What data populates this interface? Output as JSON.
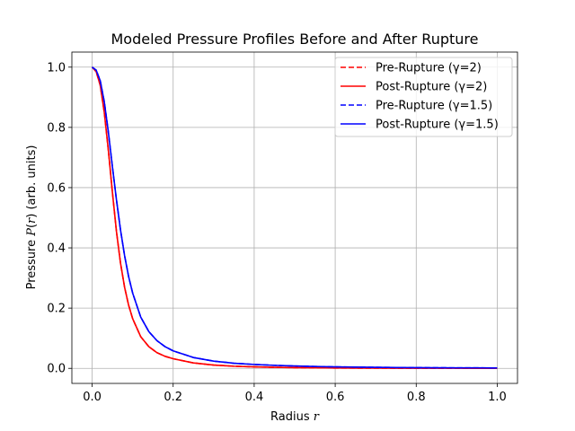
{
  "chart_data": {
    "type": "line",
    "title": "Modeled Pressure Profiles Before and After Rupture",
    "xlabel": "Radius r",
    "ylabel": "Pressure P(r) (arb. units)",
    "xlim": [
      -0.05,
      1.05
    ],
    "ylim": [
      -0.05,
      1.05
    ],
    "xticks": [
      0.0,
      0.2,
      0.4,
      0.6,
      0.8,
      1.0
    ],
    "yticks": [
      0.0,
      0.2,
      0.4,
      0.6,
      0.8,
      1.0
    ],
    "xtick_labels": [
      "0.0",
      "0.2",
      "0.4",
      "0.6",
      "0.8",
      "1.0"
    ],
    "ytick_labels": [
      "0.0",
      "0.2",
      "0.4",
      "0.6",
      "0.8",
      "1.0"
    ],
    "grid": true,
    "legend_position": "top-right",
    "x": [
      0.0,
      0.01,
      0.02,
      0.03,
      0.04,
      0.05,
      0.06,
      0.07,
      0.08,
      0.09,
      0.1,
      0.12,
      0.14,
      0.16,
      0.18,
      0.2,
      0.25,
      0.3,
      0.35,
      0.4,
      0.45,
      0.5,
      0.55,
      0.6,
      0.65,
      0.7,
      0.75,
      0.8,
      0.85,
      0.9,
      0.95,
      1.0
    ],
    "series": [
      {
        "name": "Pre-Rupture (γ=2)",
        "color": "#ff0000",
        "dash": true,
        "values": [
          1.0,
          0.985,
          0.94,
          0.85,
          0.725,
          0.585,
          0.455,
          0.35,
          0.27,
          0.21,
          0.165,
          0.105,
          0.072,
          0.052,
          0.04,
          0.032,
          0.018,
          0.011,
          0.007,
          0.005,
          0.0035,
          0.0025,
          0.0018,
          0.0013,
          0.001,
          0.0008,
          0.0006,
          0.0005,
          0.0004,
          0.0003,
          0.0002,
          0.0002
        ]
      },
      {
        "name": "Post-Rupture (γ=2)",
        "color": "#ff0000",
        "dash": false,
        "values": [
          1.0,
          0.985,
          0.94,
          0.85,
          0.725,
          0.585,
          0.455,
          0.35,
          0.27,
          0.21,
          0.165,
          0.105,
          0.072,
          0.052,
          0.04,
          0.032,
          0.018,
          0.011,
          0.007,
          0.005,
          0.0035,
          0.0025,
          0.0018,
          0.0013,
          0.001,
          0.0008,
          0.0006,
          0.0005,
          0.0004,
          0.0003,
          0.0002,
          0.0002
        ]
      },
      {
        "name": "Pre-Rupture (γ=1.5)",
        "color": "#0000ff",
        "dash": true,
        "values": [
          1.0,
          0.99,
          0.955,
          0.885,
          0.785,
          0.67,
          0.56,
          0.46,
          0.375,
          0.305,
          0.25,
          0.17,
          0.122,
          0.092,
          0.072,
          0.058,
          0.036,
          0.024,
          0.017,
          0.013,
          0.01,
          0.0078,
          0.0062,
          0.005,
          0.0041,
          0.0034,
          0.0028,
          0.0024,
          0.002,
          0.0017,
          0.0015,
          0.0013
        ]
      },
      {
        "name": "Post-Rupture (γ=1.5)",
        "color": "#0000ff",
        "dash": false,
        "values": [
          1.0,
          0.99,
          0.955,
          0.885,
          0.785,
          0.67,
          0.56,
          0.46,
          0.375,
          0.305,
          0.25,
          0.17,
          0.122,
          0.092,
          0.072,
          0.058,
          0.036,
          0.024,
          0.017,
          0.013,
          0.01,
          0.0078,
          0.0062,
          0.005,
          0.0041,
          0.0034,
          0.0028,
          0.0024,
          0.002,
          0.0017,
          0.0015,
          0.0013
        ]
      }
    ]
  }
}
